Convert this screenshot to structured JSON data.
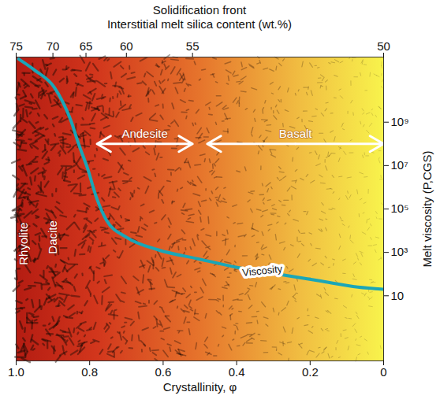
{
  "chart_data": {
    "type": "line",
    "xlabel": "Crystallinity, φ",
    "ylabel": "Melt viscosity (P,CGS)",
    "xlim": [
      1,
      0
    ],
    "xticks": [
      {
        "value": 1,
        "label": "1.0"
      },
      0.8,
      0.6,
      0.4,
      0.2,
      0
    ],
    "ylim": [
      0.01,
      1000000000000
    ],
    "yticks": [
      10,
      {
        "value": 1000,
        "label": "10³"
      },
      {
        "value": 100000,
        "label": "10⁵"
      },
      {
        "value": 10000000,
        "label": "10⁷"
      },
      {
        "value": 1000000000,
        "label": "10⁹"
      }
    ],
    "log": "y",
    "grid": false,
    "silica_axis": {
      "label": [
        "Solidification front",
        "Interstitial melt silica content (wt.%)"
      ],
      "ticks": [
        {
          "silica": 75,
          "crystallinity": 1
        },
        {
          "silica": 70,
          "crystallinity": 0.9
        },
        {
          "silica": 65,
          "crystallinity": 0.81
        },
        {
          "silica": 60,
          "crystallinity": 0.7
        },
        {
          "silica": 55,
          "crystallinity": 0.52
        },
        {
          "silica": 50,
          "crystallinity": 0
        }
      ]
    },
    "x": [
      0.993,
      0.95,
      0.896,
      0.852,
      0.83,
      0.804,
      0.783,
      0.754,
      0.7,
      0.613,
      0.504,
      0.396,
      0.287,
      0.178,
      0.07,
      0
    ],
    "series": [
      {
        "name": "Viscosity",
        "color": "#1aa6b7",
        "values": [
          800000000000,
          250000000000,
          40000000000,
          1300000000,
          100000000,
          6000000,
          400000,
          30000,
          5000,
          1300,
          500,
          200,
          100,
          50,
          25,
          20
        ],
        "label_position": {
          "x": 0.33,
          "y": 140
        }
      }
    ],
    "annotations": [
      {
        "text": "Rhyolite",
        "x": 0.98,
        "y": 2500
      },
      {
        "text": "Dacite",
        "x": 0.9,
        "y": 5000
      },
      {
        "text": "Andesite",
        "x_from": 0.78,
        "x_to": 0.52,
        "y": 100000000
      },
      {
        "text": "Basalt",
        "x_from": 0.48,
        "x_to": 0,
        "y": 100000000
      }
    ]
  }
}
